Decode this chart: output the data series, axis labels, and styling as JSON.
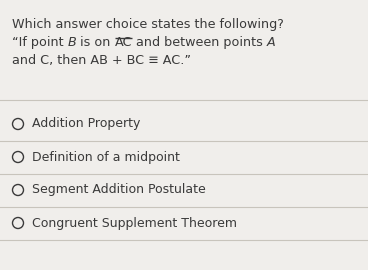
{
  "background_color": "#f0eeeb",
  "text_color": "#3a3a3a",
  "divider_color": "#c8c4bc",
  "title_line1": "Which answer choice states the following?",
  "title_line2_parts": [
    {
      "text": "“If point ",
      "style": "normal"
    },
    {
      "text": "B",
      "style": "italic"
    },
    {
      "text": " is on ",
      "style": "normal"
    },
    {
      "text": "AC",
      "style": "normal",
      "overline": true
    },
    {
      "text": " and between points ",
      "style": "normal"
    },
    {
      "text": "A",
      "style": "italic"
    }
  ],
  "title_line3": "and C, then AB + BC ≡ AC.”",
  "choices": [
    "Addition Property",
    "Definition of a midpoint",
    "Segment Addition Postulate",
    "Congruent Supplement Theorem"
  ],
  "font_size_title": 9.2,
  "font_size_choice": 9.0,
  "fig_width": 3.68,
  "fig_height": 2.7,
  "dpi": 100
}
